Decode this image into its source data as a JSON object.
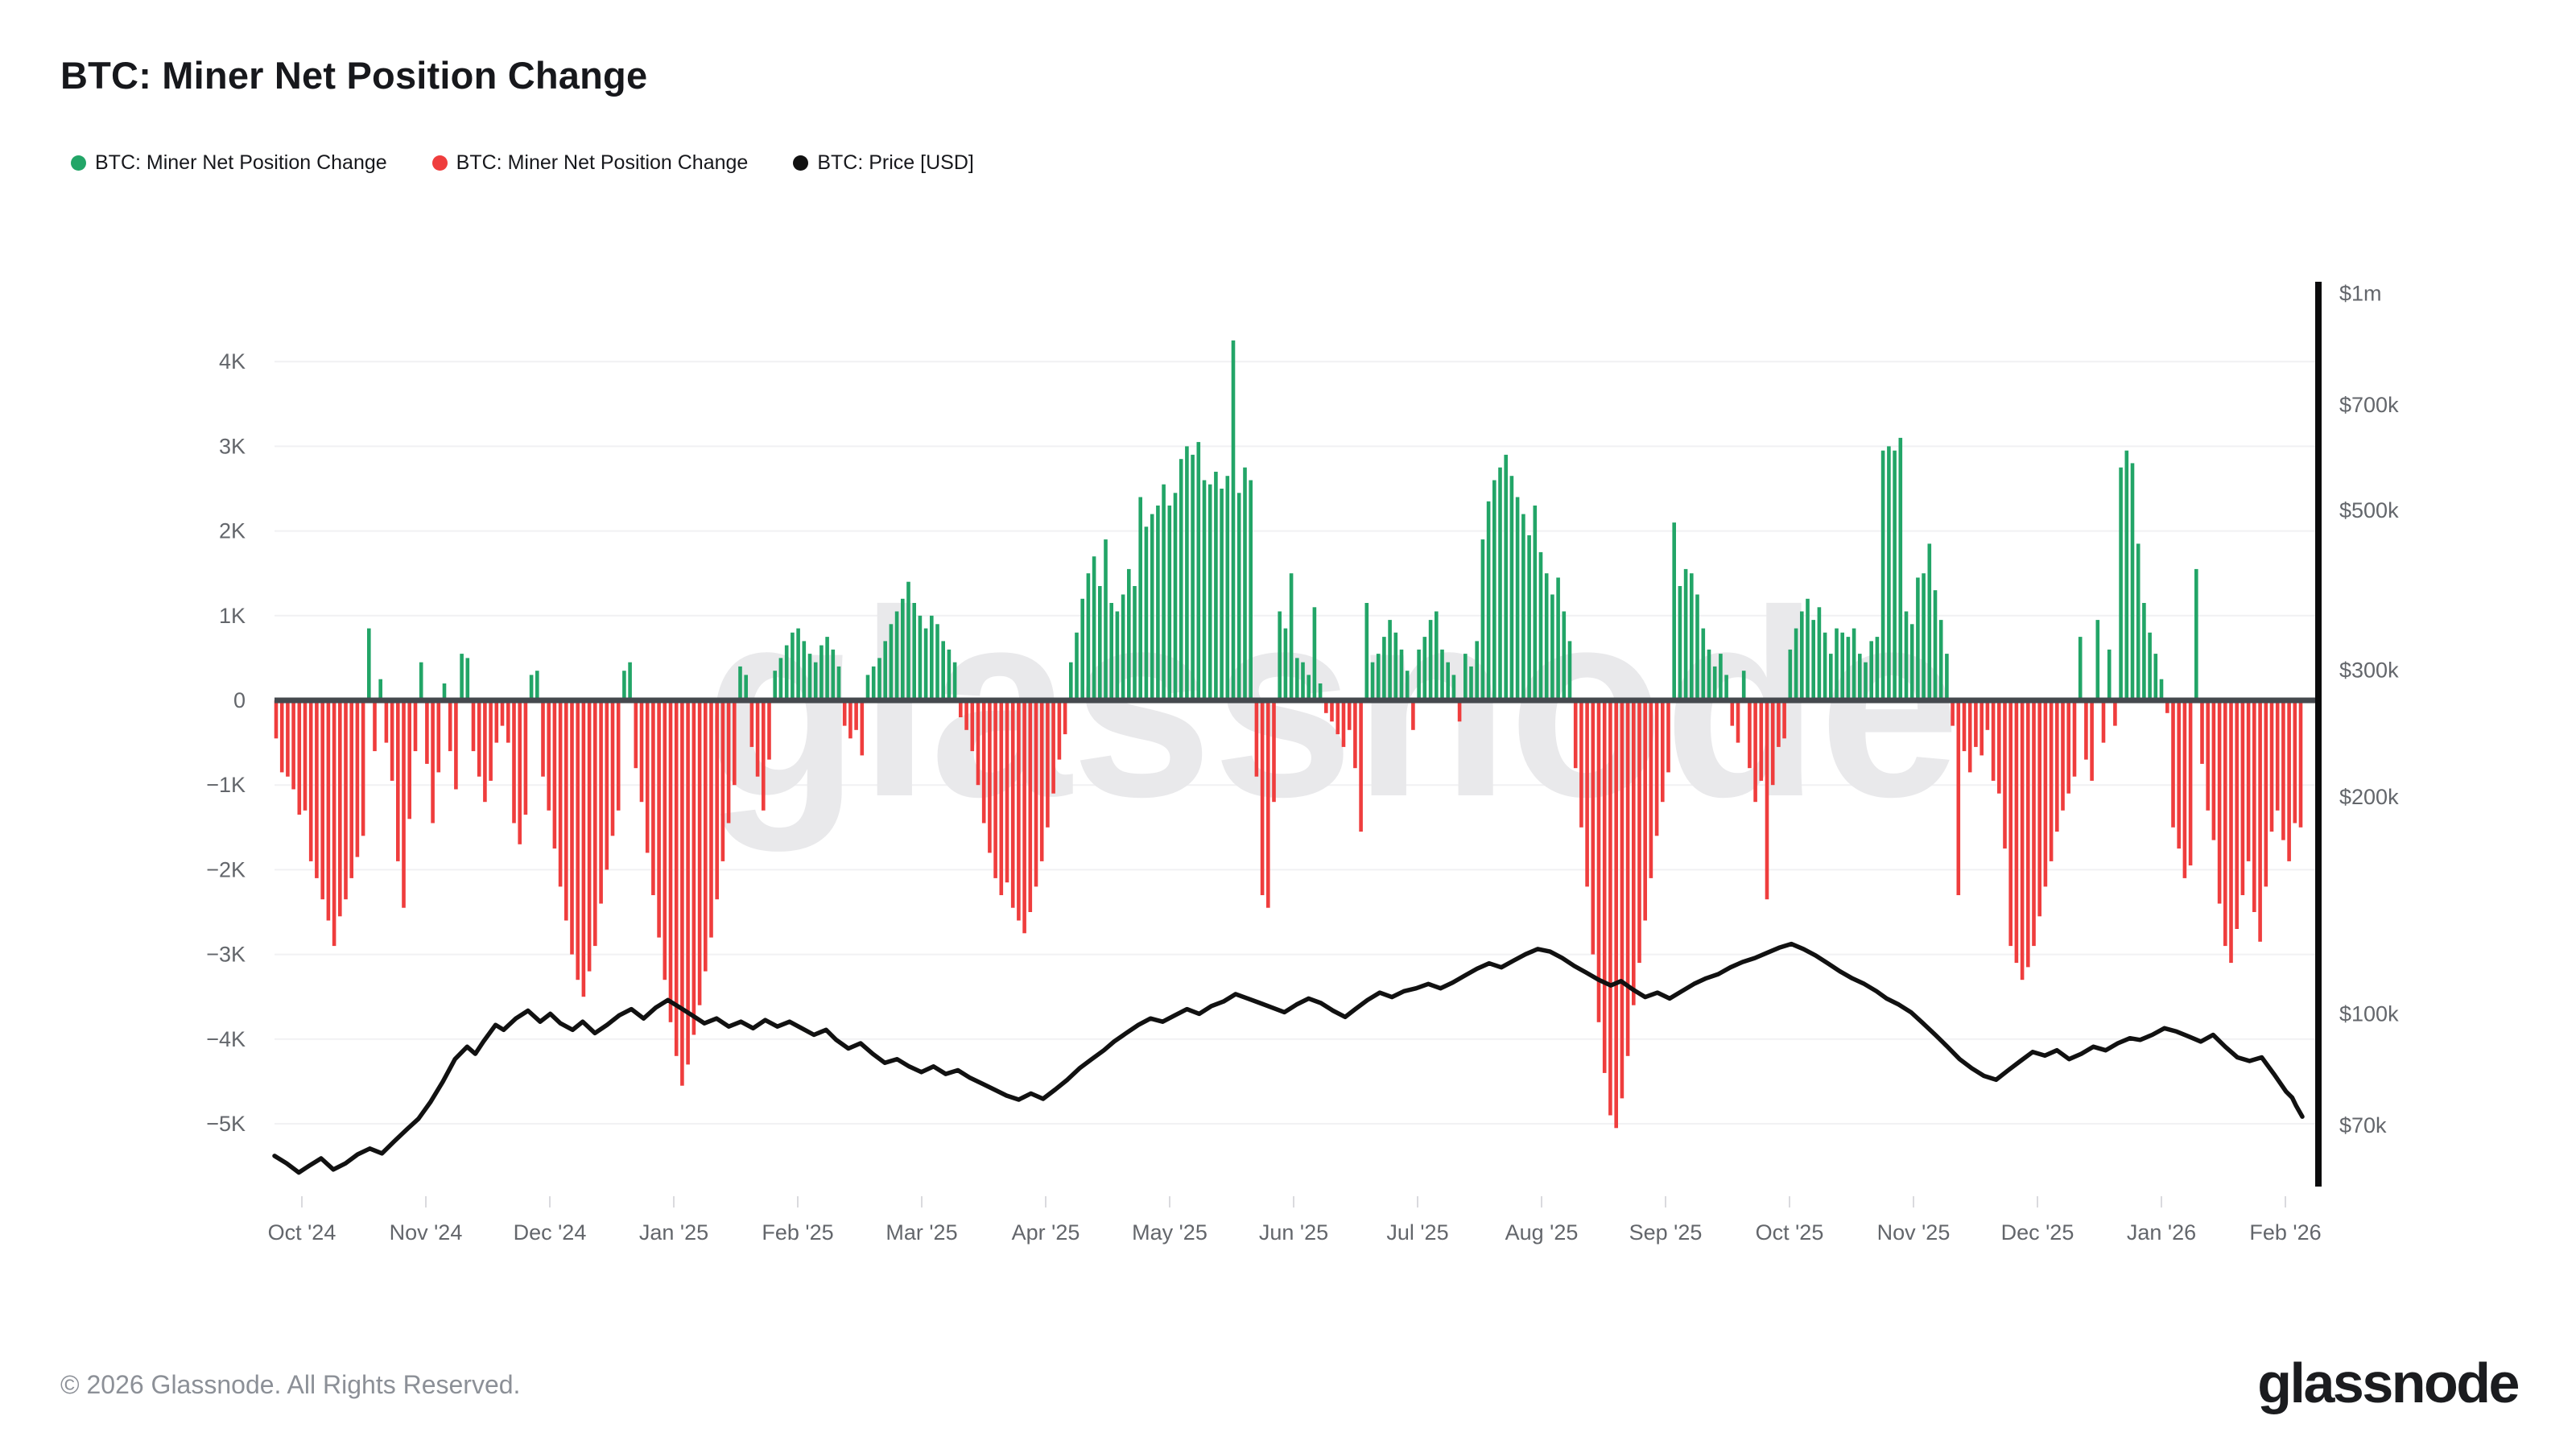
{
  "header": {
    "title": "BTC: Miner Net Position Change"
  },
  "legend": {
    "items": [
      {
        "label": "BTC: Miner Net Position Change",
        "color": "#22a567"
      },
      {
        "label": "BTC: Miner Net Position Change",
        "color": "#ef3d3d"
      },
      {
        "label": "BTC: Price [USD]",
        "color": "#111111"
      }
    ]
  },
  "watermark": {
    "text": "glassnode",
    "color": "#e9e9eb"
  },
  "footer": {
    "copyright": "© 2026 Glassnode. All Rights Reserved.",
    "brand_logo_text": "glassnode"
  },
  "chart_data": {
    "type": "bar+line",
    "title": "BTC: Miner Net Position Change",
    "grid": "horizontal-only",
    "legend_position": "top-left",
    "colors": {
      "positive_bar": "#22a567",
      "negative_bar": "#ef3d3d",
      "price_line": "#111111",
      "gridline": "#f1f1f3",
      "zero_line": "#45494e",
      "right_axis_line": "#0b0b0c",
      "axis_text": "#63666b",
      "month_tick": "#dadade"
    },
    "x_axis": {
      "tick_labels": [
        "Oct '24",
        "Nov '24",
        "Dec '24",
        "Jan '25",
        "Feb '25",
        "Mar '25",
        "Apr '25",
        "May '25",
        "Jun '25",
        "Jul '25",
        "Aug '25",
        "Sep '25",
        "Oct '25",
        "Nov '25",
        "Dec '25",
        "Jan '26",
        "Feb '26"
      ]
    },
    "left_y_axis": {
      "unit": "thousand BTC",
      "tick_labels": [
        "4K",
        "3K",
        "2K",
        "1K",
        "0",
        "−1K",
        "−2K",
        "−3K",
        "−4K",
        "−5K"
      ],
      "tick_values_k": [
        4,
        3,
        2,
        1,
        0,
        -1,
        -2,
        -3,
        -4,
        -5
      ],
      "range_k": [
        -5.5,
        4.6
      ]
    },
    "right_y_axis": {
      "scale": "log",
      "unit": "USD",
      "ticks": [
        {
          "label": "$1m",
          "value": 1000000
        },
        {
          "label": "$700k",
          "value": 700000
        },
        {
          "label": "$500k",
          "value": 500000
        },
        {
          "label": "$300k",
          "value": 300000
        },
        {
          "label": "$200k",
          "value": 200000
        },
        {
          "label": "$100k",
          "value": 100000
        },
        {
          "label": "$70k",
          "value": 70000
        }
      ]
    },
    "series": [
      {
        "name": "BTC: Miner Net Position Change",
        "type": "bar",
        "color": "#22a567",
        "role": "positive values"
      },
      {
        "name": "BTC: Miner Net Position Change",
        "type": "bar",
        "color": "#ef3d3d",
        "role": "negative values"
      },
      {
        "name": "BTC: Price [USD]",
        "type": "line",
        "color": "#111111",
        "axis": "right"
      }
    ],
    "bars_k_btc": [
      -0.45,
      -0.85,
      -0.9,
      -1.05,
      -1.35,
      -1.3,
      -1.9,
      -2.1,
      -2.35,
      -2.6,
      -2.9,
      -2.55,
      -2.35,
      -2.1,
      -1.85,
      -1.6,
      0.85,
      -0.6,
      0.25,
      -0.5,
      -0.95,
      -1.9,
      -2.45,
      -1.4,
      -0.6,
      0.45,
      -0.75,
      -1.45,
      -0.85,
      0.2,
      -0.6,
      -1.05,
      0.55,
      0.5,
      -0.6,
      -0.9,
      -1.2,
      -0.95,
      -0.5,
      -0.3,
      -0.5,
      -1.45,
      -1.7,
      -1.35,
      0.3,
      0.35,
      -0.9,
      -1.3,
      -1.75,
      -2.2,
      -2.6,
      -3.0,
      -3.3,
      -3.5,
      -3.2,
      -2.9,
      -2.4,
      -2.0,
      -1.6,
      -1.3,
      0.35,
      0.45,
      -0.8,
      -1.2,
      -1.8,
      -2.3,
      -2.8,
      -3.3,
      -3.8,
      -4.2,
      -4.55,
      -4.3,
      -3.95,
      -3.6,
      -3.2,
      -2.8,
      -2.35,
      -1.9,
      -1.45,
      -1.0,
      0.4,
      0.3,
      -0.55,
      -0.9,
      -1.3,
      -0.7,
      0.35,
      0.5,
      0.65,
      0.8,
      0.85,
      0.7,
      0.55,
      0.45,
      0.65,
      0.75,
      0.6,
      0.4,
      -0.3,
      -0.45,
      -0.35,
      -0.65,
      0.3,
      0.4,
      0.5,
      0.7,
      0.9,
      1.05,
      1.2,
      1.4,
      1.15,
      1.0,
      0.85,
      1.0,
      0.9,
      0.7,
      0.6,
      0.45,
      -0.2,
      -0.35,
      -0.6,
      -1.0,
      -1.45,
      -1.8,
      -2.1,
      -2.3,
      -2.15,
      -2.45,
      -2.6,
      -2.75,
      -2.5,
      -2.2,
      -1.9,
      -1.5,
      -1.1,
      -0.7,
      -0.4,
      0.45,
      0.8,
      1.2,
      1.5,
      1.7,
      1.35,
      1.9,
      1.15,
      1.05,
      1.25,
      1.55,
      1.35,
      2.4,
      2.05,
      2.2,
      2.3,
      2.55,
      2.3,
      2.45,
      2.85,
      3.0,
      2.9,
      3.05,
      2.6,
      2.55,
      2.7,
      2.5,
      2.65,
      4.25,
      2.45,
      2.75,
      2.6,
      -0.9,
      -2.3,
      -2.45,
      -1.2,
      1.05,
      0.85,
      1.5,
      0.5,
      0.45,
      0.3,
      1.1,
      0.2,
      -0.15,
      -0.25,
      -0.4,
      -0.55,
      -0.35,
      -0.8,
      -1.55,
      1.15,
      0.45,
      0.55,
      0.75,
      0.95,
      0.8,
      0.6,
      0.35,
      -0.35,
      0.6,
      0.75,
      0.95,
      1.05,
      0.6,
      0.45,
      0.3,
      -0.25,
      0.55,
      0.4,
      0.7,
      1.9,
      2.35,
      2.6,
      2.75,
      2.9,
      2.65,
      2.4,
      2.2,
      1.95,
      2.3,
      1.75,
      1.5,
      1.25,
      1.45,
      1.05,
      0.7,
      -0.8,
      -1.5,
      -2.2,
      -3.0,
      -3.8,
      -4.4,
      -4.9,
      -5.05,
      -4.7,
      -4.2,
      -3.6,
      -3.1,
      -2.6,
      -2.1,
      -1.6,
      -1.2,
      -0.85,
      2.1,
      1.35,
      1.55,
      1.5,
      1.25,
      0.85,
      0.6,
      0.4,
      0.55,
      0.3,
      -0.3,
      -0.5,
      0.35,
      -0.8,
      -1.2,
      -0.95,
      -2.35,
      -1.0,
      -0.55,
      -0.45,
      0.6,
      0.85,
      1.05,
      1.2,
      0.95,
      1.1,
      0.8,
      0.55,
      0.85,
      0.8,
      0.75,
      0.85,
      0.55,
      0.45,
      0.7,
      0.75,
      2.95,
      3.0,
      2.95,
      3.1,
      1.05,
      0.9,
      1.45,
      1.5,
      1.85,
      1.3,
      0.95,
      0.55,
      -0.3,
      -2.3,
      -0.6,
      -0.85,
      -0.55,
      -0.65,
      -0.35,
      -0.95,
      -1.1,
      -1.75,
      -2.9,
      -3.1,
      -3.3,
      -3.15,
      -2.9,
      -2.55,
      -2.2,
      -1.9,
      -1.55,
      -1.3,
      -1.1,
      -0.9,
      0.75,
      -0.7,
      -0.95,
      0.95,
      -0.5,
      0.6,
      -0.3,
      2.75,
      2.95,
      2.8,
      1.85,
      1.15,
      0.8,
      0.55,
      0.25,
      -0.15,
      -1.5,
      -1.75,
      -2.1,
      -1.95,
      1.55,
      -0.75,
      -1.3,
      -1.65,
      -2.4,
      -2.9,
      -3.1,
      -2.7,
      -2.3,
      -1.9,
      -2.5,
      -2.85,
      -2.2,
      -1.55,
      -1.3,
      -1.65,
      -1.9,
      -1.45,
      -1.5
    ],
    "price_usd_thousands": [
      [
        0.0,
        63.5
      ],
      [
        0.006,
        62.0
      ],
      [
        0.012,
        60.2
      ],
      [
        0.017,
        61.5
      ],
      [
        0.023,
        63.0
      ],
      [
        0.029,
        60.8
      ],
      [
        0.035,
        62.0
      ],
      [
        0.041,
        63.8
      ],
      [
        0.047,
        65.0
      ],
      [
        0.053,
        64.0
      ],
      [
        0.059,
        66.5
      ],
      [
        0.065,
        69.0
      ],
      [
        0.071,
        71.5
      ],
      [
        0.077,
        75.5
      ],
      [
        0.083,
        80.5
      ],
      [
        0.089,
        86.5
      ],
      [
        0.095,
        90.0
      ],
      [
        0.099,
        88.0
      ],
      [
        0.103,
        91.5
      ],
      [
        0.109,
        96.5
      ],
      [
        0.113,
        95.0
      ],
      [
        0.119,
        98.5
      ],
      [
        0.125,
        101.0
      ],
      [
        0.131,
        97.5
      ],
      [
        0.136,
        100.0
      ],
      [
        0.141,
        97.0
      ],
      [
        0.147,
        95.0
      ],
      [
        0.152,
        97.5
      ],
      [
        0.158,
        94.0
      ],
      [
        0.164,
        96.5
      ],
      [
        0.17,
        99.5
      ],
      [
        0.176,
        101.5
      ],
      [
        0.182,
        98.5
      ],
      [
        0.188,
        102.0
      ],
      [
        0.194,
        104.5
      ],
      [
        0.2,
        102.0
      ],
      [
        0.206,
        99.5
      ],
      [
        0.212,
        97.0
      ],
      [
        0.218,
        98.5
      ],
      [
        0.224,
        96.0
      ],
      [
        0.23,
        97.5
      ],
      [
        0.236,
        95.5
      ],
      [
        0.242,
        98.0
      ],
      [
        0.248,
        96.0
      ],
      [
        0.254,
        97.5
      ],
      [
        0.26,
        95.5
      ],
      [
        0.266,
        93.5
      ],
      [
        0.272,
        95.0
      ],
      [
        0.277,
        92.0
      ],
      [
        0.283,
        89.5
      ],
      [
        0.289,
        91.0
      ],
      [
        0.295,
        88.0
      ],
      [
        0.301,
        85.5
      ],
      [
        0.307,
        86.5
      ],
      [
        0.313,
        84.5
      ],
      [
        0.319,
        83.0
      ],
      [
        0.325,
        84.5
      ],
      [
        0.331,
        82.5
      ],
      [
        0.337,
        83.5
      ],
      [
        0.343,
        81.5
      ],
      [
        0.349,
        80.0
      ],
      [
        0.355,
        78.5
      ],
      [
        0.361,
        77.0
      ],
      [
        0.367,
        76.0
      ],
      [
        0.373,
        77.5
      ],
      [
        0.379,
        76.2
      ],
      [
        0.385,
        78.5
      ],
      [
        0.391,
        81.0
      ],
      [
        0.397,
        84.0
      ],
      [
        0.403,
        86.5
      ],
      [
        0.409,
        89.0
      ],
      [
        0.414,
        91.5
      ],
      [
        0.42,
        94.0
      ],
      [
        0.426,
        96.5
      ],
      [
        0.432,
        98.5
      ],
      [
        0.438,
        97.5
      ],
      [
        0.444,
        99.5
      ],
      [
        0.45,
        101.5
      ],
      [
        0.456,
        100.0
      ],
      [
        0.462,
        102.5
      ],
      [
        0.468,
        104.0
      ],
      [
        0.474,
        106.5
      ],
      [
        0.48,
        105.0
      ],
      [
        0.486,
        103.5
      ],
      [
        0.492,
        102.0
      ],
      [
        0.498,
        100.5
      ],
      [
        0.504,
        103.0
      ],
      [
        0.51,
        105.0
      ],
      [
        0.516,
        103.5
      ],
      [
        0.522,
        101.0
      ],
      [
        0.528,
        99.0
      ],
      [
        0.533,
        101.5
      ],
      [
        0.539,
        104.5
      ],
      [
        0.545,
        107.0
      ],
      [
        0.551,
        105.5
      ],
      [
        0.557,
        107.5
      ],
      [
        0.563,
        108.5
      ],
      [
        0.569,
        110.0
      ],
      [
        0.575,
        108.5
      ],
      [
        0.581,
        110.5
      ],
      [
        0.587,
        113.0
      ],
      [
        0.593,
        115.5
      ],
      [
        0.599,
        117.5
      ],
      [
        0.605,
        116.0
      ],
      [
        0.611,
        118.5
      ],
      [
        0.617,
        121.0
      ],
      [
        0.623,
        123.0
      ],
      [
        0.629,
        122.0
      ],
      [
        0.635,
        119.5
      ],
      [
        0.641,
        116.5
      ],
      [
        0.647,
        114.0
      ],
      [
        0.653,
        111.5
      ],
      [
        0.659,
        109.5
      ],
      [
        0.664,
        111.0
      ],
      [
        0.67,
        108.0
      ],
      [
        0.676,
        105.5
      ],
      [
        0.682,
        107.0
      ],
      [
        0.688,
        105.0
      ],
      [
        0.694,
        107.5
      ],
      [
        0.7,
        110.0
      ],
      [
        0.706,
        112.0
      ],
      [
        0.712,
        113.5
      ],
      [
        0.718,
        116.0
      ],
      [
        0.724,
        118.0
      ],
      [
        0.73,
        119.5
      ],
      [
        0.736,
        121.5
      ],
      [
        0.742,
        123.5
      ],
      [
        0.748,
        125.0
      ],
      [
        0.754,
        123.0
      ],
      [
        0.76,
        120.5
      ],
      [
        0.766,
        117.5
      ],
      [
        0.772,
        114.5
      ],
      [
        0.778,
        112.0
      ],
      [
        0.784,
        110.0
      ],
      [
        0.79,
        107.5
      ],
      [
        0.795,
        105.0
      ],
      [
        0.801,
        103.0
      ],
      [
        0.807,
        100.5
      ],
      [
        0.813,
        97.0
      ],
      [
        0.819,
        93.5
      ],
      [
        0.825,
        90.0
      ],
      [
        0.831,
        86.5
      ],
      [
        0.837,
        84.0
      ],
      [
        0.843,
        82.0
      ],
      [
        0.849,
        81.0
      ],
      [
        0.855,
        83.5
      ],
      [
        0.861,
        86.0
      ],
      [
        0.867,
        88.5
      ],
      [
        0.873,
        87.5
      ],
      [
        0.879,
        89.0
      ],
      [
        0.885,
        86.5
      ],
      [
        0.891,
        88.0
      ],
      [
        0.897,
        90.0
      ],
      [
        0.903,
        89.0
      ],
      [
        0.909,
        91.0
      ],
      [
        0.915,
        92.5
      ],
      [
        0.92,
        92.0
      ],
      [
        0.926,
        93.5
      ],
      [
        0.932,
        95.5
      ],
      [
        0.938,
        94.5
      ],
      [
        0.944,
        93.0
      ],
      [
        0.95,
        91.5
      ],
      [
        0.956,
        93.5
      ],
      [
        0.962,
        90.0
      ],
      [
        0.968,
        87.0
      ],
      [
        0.974,
        86.0
      ],
      [
        0.98,
        87.0
      ],
      [
        0.986,
        82.5
      ],
      [
        0.992,
        78.0
      ],
      [
        0.995,
        76.5
      ],
      [
        0.997,
        74.5
      ],
      [
        1.0,
        72.0
      ]
    ]
  }
}
